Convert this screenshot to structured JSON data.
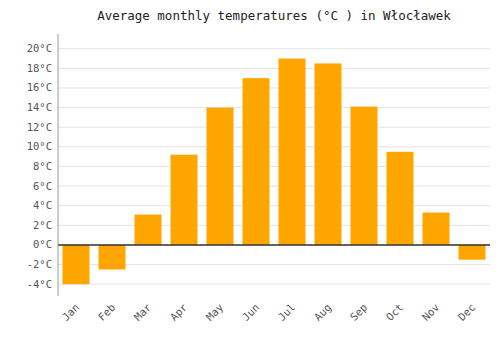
{
  "chart_data": {
    "type": "bar",
    "title": "Average monthly temperatures (°C ) in Włocławek",
    "categories": [
      "Jan",
      "Feb",
      "Mar",
      "Apr",
      "May",
      "Jun",
      "Jul",
      "Aug",
      "Sep",
      "Oct",
      "Nov",
      "Dec"
    ],
    "values": [
      -4.0,
      -2.5,
      3.1,
      9.2,
      14.0,
      17.0,
      19.0,
      18.5,
      14.1,
      9.5,
      3.3,
      -1.5
    ],
    "color": "#FFA500",
    "ylim": [
      -5.2,
      21.5
    ],
    "yticks": [
      {
        "value": -4,
        "label": "-4°C"
      },
      {
        "value": -2,
        "label": "-2°C"
      },
      {
        "value": 0,
        "label": "0°C"
      },
      {
        "value": 2,
        "label": "2°C"
      },
      {
        "value": 4,
        "label": "4°C"
      },
      {
        "value": 6,
        "label": "6°C"
      },
      {
        "value": 8,
        "label": "8°C"
      },
      {
        "value": 10,
        "label": "10°C"
      },
      {
        "value": 12,
        "label": "12°C"
      },
      {
        "value": 14,
        "label": "14°C"
      },
      {
        "value": 16,
        "label": "16°C"
      },
      {
        "value": 18,
        "label": "18°C"
      },
      {
        "value": 20,
        "label": "20°C"
      }
    ],
    "grid": true
  }
}
